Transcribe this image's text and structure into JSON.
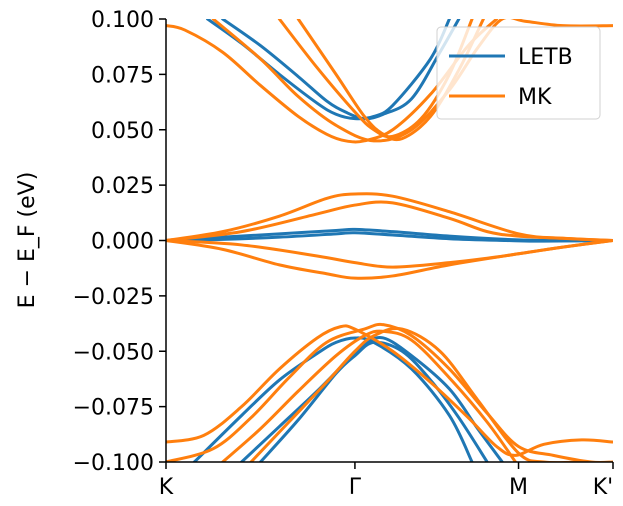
{
  "chart_data": {
    "type": "line",
    "ylabel": "E − E_F (eV)",
    "ylim": [
      -0.1,
      0.1
    ],
    "yticks": [
      "0.100",
      "0.075",
      "0.050",
      "0.025",
      "0.000",
      "−0.025",
      "−0.050",
      "−0.075",
      "−0.100"
    ],
    "ytick_values": [
      0.1,
      0.075,
      0.05,
      0.025,
      0.0,
      -0.025,
      -0.05,
      -0.075,
      -0.1
    ],
    "xticks": [
      "K",
      "Γ",
      "M",
      "K'"
    ],
    "xtick_values": [
      0.0,
      1.0,
      1.866,
      2.366
    ],
    "xlim": [
      0.0,
      2.366
    ],
    "legend_position": "top-right",
    "colors": {
      "LETB": "#1f77b4",
      "MK": "#ff7f0e"
    },
    "series": [
      {
        "name": "LETB",
        "bands": [
          {
            "x": [
              0.22,
              0.4,
              0.6,
              0.8,
              0.9,
              1.0,
              1.1,
              1.2,
              1.4,
              1.5
            ],
            "y": [
              0.1,
              0.089,
              0.075,
              0.062,
              0.057,
              0.055,
              0.056,
              0.061,
              0.082,
              0.1
            ]
          },
          {
            "x": [
              0.3,
              0.5,
              0.7,
              0.85,
              0.95,
              1.05,
              1.15,
              1.3,
              1.45,
              1.55
            ],
            "y": [
              0.1,
              0.088,
              0.074,
              0.063,
              0.058,
              0.055,
              0.057,
              0.064,
              0.085,
              0.1
            ]
          },
          {
            "x": [
              0.0,
              0.3,
              0.6,
              0.9,
              1.0,
              1.2,
              1.5,
              1.8,
              2.0,
              2.366
            ],
            "y": [
              0.0,
              0.0015,
              0.003,
              0.0045,
              0.005,
              0.004,
              0.002,
              0.0005,
              0.0,
              0.0
            ]
          },
          {
            "x": [
              0.0,
              0.3,
              0.6,
              0.9,
              1.0,
              1.2,
              1.5,
              1.8,
              2.0,
              2.366
            ],
            "y": [
              0.0,
              0.0005,
              0.0015,
              0.003,
              0.0035,
              0.0025,
              0.0008,
              0.0,
              -0.0003,
              0.0
            ]
          },
          {
            "x": [
              0.15,
              0.4,
              0.6,
              0.8,
              0.9,
              1.0,
              1.1,
              1.3,
              1.5,
              1.62
            ],
            "y": [
              -0.1,
              -0.079,
              -0.063,
              -0.051,
              -0.046,
              -0.044,
              -0.046,
              -0.058,
              -0.079,
              -0.1
            ]
          },
          {
            "x": [
              0.4,
              0.6,
              0.8,
              0.95,
              1.05,
              1.15,
              1.3,
              1.5,
              1.65,
              1.78
            ],
            "y": [
              -0.1,
              -0.084,
              -0.068,
              -0.055,
              -0.047,
              -0.044,
              -0.052,
              -0.067,
              -0.085,
              -0.1
            ]
          },
          {
            "x": [
              0.5,
              0.7,
              0.9,
              1.0,
              1.1,
              1.25,
              1.4,
              1.55,
              1.7
            ],
            "y": [
              -0.1,
              -0.081,
              -0.06,
              -0.052,
              -0.046,
              -0.05,
              -0.063,
              -0.08,
              -0.1
            ]
          }
        ]
      },
      {
        "name": "MK",
        "bands": [
          {
            "x": [
              0.0,
              0.1,
              0.3,
              0.5,
              0.7,
              0.85,
              0.95,
              1.05,
              1.2,
              1.4,
              1.6,
              1.75
            ],
            "y": [
              0.097,
              0.095,
              0.085,
              0.07,
              0.056,
              0.048,
              0.045,
              0.045,
              0.05,
              0.066,
              0.088,
              0.1
            ]
          },
          {
            "x": [
              0.25,
              0.5,
              0.7,
              0.9,
              1.1,
              1.3,
              1.5,
              1.65,
              1.78,
              1.9,
              2.1,
              2.366
            ],
            "y": [
              0.1,
              0.082,
              0.065,
              0.052,
              0.045,
              0.05,
              0.068,
              0.087,
              0.1,
              0.099,
              0.097,
              0.097
            ]
          },
          {
            "x": [
              0.6,
              0.8,
              1.0,
              1.1,
              1.2,
              1.35,
              1.5,
              1.62
            ],
            "y": [
              0.1,
              0.078,
              0.058,
              0.05,
              0.047,
              0.055,
              0.075,
              0.1
            ]
          },
          {
            "x": [
              0.7,
              0.9,
              1.05,
              1.15,
              1.25,
              1.4,
              1.55,
              1.68
            ],
            "y": [
              0.1,
              0.075,
              0.056,
              0.048,
              0.046,
              0.056,
              0.077,
              0.1
            ]
          },
          {
            "x": [
              0.0,
              0.3,
              0.6,
              0.85,
              1.0,
              1.2,
              1.5,
              1.866,
              2.1,
              2.366
            ],
            "y": [
              0.0,
              0.004,
              0.011,
              0.019,
              0.021,
              0.02,
              0.013,
              0.003,
              0.001,
              0.0
            ]
          },
          {
            "x": [
              0.0,
              0.4,
              0.8,
              1.0,
              1.2,
              1.5,
              1.7,
              1.866,
              2.1,
              2.366
            ],
            "y": [
              0.0,
              0.004,
              0.012,
              0.016,
              0.017,
              0.01,
              0.004,
              0.002,
              0.001,
              0.0
            ]
          },
          {
            "x": [
              0.0,
              0.3,
              0.6,
              0.85,
              1.0,
              1.2,
              1.5,
              1.866,
              2.1,
              2.366
            ],
            "y": [
              0.0,
              -0.004,
              -0.011,
              -0.015,
              -0.017,
              -0.016,
              -0.011,
              -0.006,
              -0.003,
              0.0
            ]
          },
          {
            "x": [
              0.0,
              0.4,
              0.8,
              1.0,
              1.2,
              1.5,
              1.7,
              1.866,
              2.1,
              2.366
            ],
            "y": [
              0.0,
              -0.002,
              -0.007,
              -0.01,
              -0.012,
              -0.01,
              -0.008,
              -0.006,
              -0.003,
              0.0
            ]
          },
          {
            "x": [
              0.0,
              0.2,
              0.4,
              0.6,
              0.8,
              0.92,
              1.0,
              1.2,
              1.4,
              1.6,
              1.75,
              1.85,
              2.0,
              2.2,
              2.366
            ],
            "y": [
              -0.091,
              -0.088,
              -0.075,
              -0.058,
              -0.044,
              -0.039,
              -0.04,
              -0.05,
              -0.064,
              -0.08,
              -0.093,
              -0.097,
              -0.092,
              -0.09,
              -0.091
            ]
          },
          {
            "x": [
              0.0,
              0.25,
              0.45,
              0.65,
              0.85,
              1.05,
              1.15,
              1.3,
              1.5,
              1.7,
              1.866,
              2.05,
              2.25,
              2.366
            ],
            "y": [
              -0.1,
              -0.094,
              -0.08,
              -0.062,
              -0.046,
              -0.04,
              -0.038,
              -0.043,
              -0.058,
              -0.078,
              -0.093,
              -0.097,
              -0.1,
              -0.1
            ]
          },
          {
            "x": [
              0.3,
              0.5,
              0.7,
              0.9,
              1.05,
              1.15,
              1.3,
              1.5,
              1.7,
              1.85
            ],
            "y": [
              -0.1,
              -0.085,
              -0.068,
              -0.052,
              -0.043,
              -0.041,
              -0.045,
              -0.062,
              -0.082,
              -0.1
            ]
          },
          {
            "x": [
              0.45,
              0.65,
              0.85,
              1.0,
              1.1,
              1.25,
              1.45,
              1.65,
              1.866,
              2.0,
              2.2
            ],
            "y": [
              -0.1,
              -0.082,
              -0.064,
              -0.05,
              -0.043,
              -0.04,
              -0.05,
              -0.072,
              -0.096,
              -0.1,
              -0.1
            ]
          }
        ]
      }
    ]
  }
}
